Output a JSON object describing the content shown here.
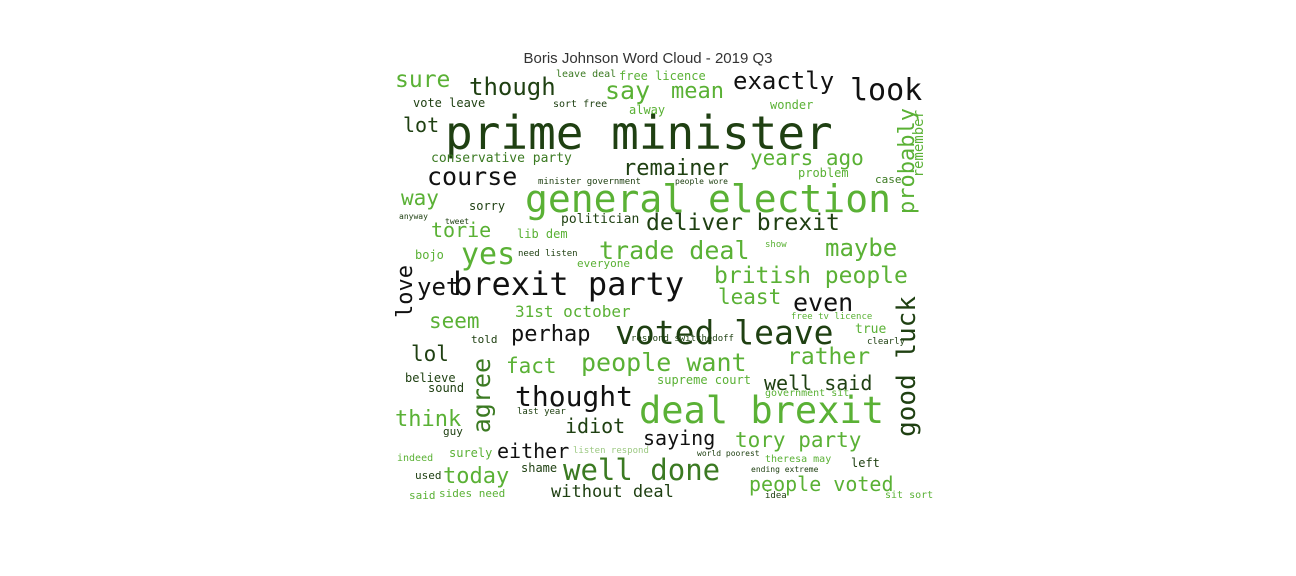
{
  "title": "Boris Johnson Word Cloud - 2019 Q3",
  "colors": {
    "black": "#111111",
    "dark": "#1f4012",
    "mid": "#3b7a22",
    "light": "#5ab135",
    "pale": "#9cc982"
  },
  "words": [
    {
      "text": "prime minister",
      "color": "dark"
    },
    {
      "text": "general election",
      "color": "light"
    },
    {
      "text": "deal brexit",
      "color": "light"
    },
    {
      "text": "brexit party",
      "color": "black"
    },
    {
      "text": "voted leave",
      "color": "dark"
    },
    {
      "text": "well done",
      "color": "mid"
    },
    {
      "text": "people want",
      "color": "light"
    },
    {
      "text": "thought",
      "color": "black"
    },
    {
      "text": "deliver brexit",
      "color": "dark"
    },
    {
      "text": "trade deal",
      "color": "light"
    },
    {
      "text": "british people",
      "color": "light"
    },
    {
      "text": "look",
      "color": "black"
    },
    {
      "text": "exactly",
      "color": "black"
    },
    {
      "text": "though",
      "color": "dark"
    },
    {
      "text": "say",
      "color": "light"
    },
    {
      "text": "mean",
      "color": "light"
    },
    {
      "text": "sure",
      "color": "light"
    },
    {
      "text": "course",
      "color": "black"
    },
    {
      "text": "remainer",
      "color": "dark"
    },
    {
      "text": "years ago",
      "color": "light"
    },
    {
      "text": "yes",
      "color": "light"
    },
    {
      "text": "maybe",
      "color": "light"
    },
    {
      "text": "yet",
      "color": "black"
    },
    {
      "text": "even",
      "color": "black"
    },
    {
      "text": "least",
      "color": "light"
    },
    {
      "text": "perhap",
      "color": "black"
    },
    {
      "text": "fact",
      "color": "light"
    },
    {
      "text": "rather",
      "color": "light"
    },
    {
      "text": "well said",
      "color": "dark"
    },
    {
      "text": "tory party",
      "color": "light"
    },
    {
      "text": "saying",
      "color": "black"
    },
    {
      "text": "idiot",
      "color": "dark"
    },
    {
      "text": "either",
      "color": "black"
    },
    {
      "text": "people voted",
      "color": "light"
    },
    {
      "text": "today",
      "color": "light"
    },
    {
      "text": "without deal",
      "color": "dark"
    },
    {
      "text": "think",
      "color": "light"
    },
    {
      "text": "lot",
      "color": "dark"
    },
    {
      "text": "way",
      "color": "light"
    },
    {
      "text": "torie",
      "color": "light"
    },
    {
      "text": "seem",
      "color": "light"
    },
    {
      "text": "lol",
      "color": "dark"
    },
    {
      "text": "31st october",
      "color": "light"
    },
    {
      "text": "conservative party",
      "color": "mid"
    },
    {
      "text": "politician",
      "color": "dark"
    },
    {
      "text": "lib dem",
      "color": "light"
    },
    {
      "text": "free licence",
      "color": "light"
    },
    {
      "text": "leave deal",
      "color": "mid"
    },
    {
      "text": "vote leave",
      "color": "dark"
    },
    {
      "text": "sorry",
      "color": "dark"
    },
    {
      "text": "problem",
      "color": "light"
    },
    {
      "text": "case",
      "color": "mid"
    },
    {
      "text": "wonder",
      "color": "light"
    },
    {
      "text": "alway",
      "color": "light"
    },
    {
      "text": "sort free",
      "color": "dark"
    },
    {
      "text": "true",
      "color": "light"
    },
    {
      "text": "clearly",
      "color": "dark"
    },
    {
      "text": "supreme court",
      "color": "light"
    },
    {
      "text": "government sit",
      "color": "light"
    },
    {
      "text": "theresa may",
      "color": "light"
    },
    {
      "text": "left",
      "color": "dark"
    },
    {
      "text": "shame",
      "color": "dark"
    },
    {
      "text": "believe",
      "color": "dark"
    },
    {
      "text": "sound",
      "color": "dark"
    },
    {
      "text": "told",
      "color": "dark"
    },
    {
      "text": "guy",
      "color": "dark"
    },
    {
      "text": "surely",
      "color": "light"
    },
    {
      "text": "indeed",
      "color": "light"
    },
    {
      "text": "used",
      "color": "dark"
    },
    {
      "text": "said",
      "color": "light"
    },
    {
      "text": "sides need",
      "color": "light"
    },
    {
      "text": "sit sort",
      "color": "light"
    },
    {
      "text": "bojo",
      "color": "light"
    },
    {
      "text": "everyone",
      "color": "light"
    },
    {
      "text": "need listen",
      "color": "dark"
    },
    {
      "text": "minister government",
      "color": "dark"
    },
    {
      "text": "people wore",
      "color": "dark"
    },
    {
      "text": "free tv licence",
      "color": "light"
    },
    {
      "text": "respond switchedoff",
      "color": "dark"
    },
    {
      "text": "last year",
      "color": "dark"
    },
    {
      "text": "listen respond",
      "color": "pale"
    },
    {
      "text": "world poorest",
      "color": "dark"
    },
    {
      "text": "ending extreme",
      "color": "dark"
    },
    {
      "text": "idea",
      "color": "dark"
    },
    {
      "text": "show",
      "color": "light"
    },
    {
      "text": "anyway",
      "color": "dark"
    },
    {
      "text": "tweet",
      "color": "dark"
    },
    {
      "text": "good luck",
      "color": "dark"
    },
    {
      "text": "probably",
      "color": "light"
    },
    {
      "text": "remember",
      "color": "light"
    },
    {
      "text": "love",
      "color": "black"
    },
    {
      "text": "agree",
      "color": "mid"
    }
  ]
}
